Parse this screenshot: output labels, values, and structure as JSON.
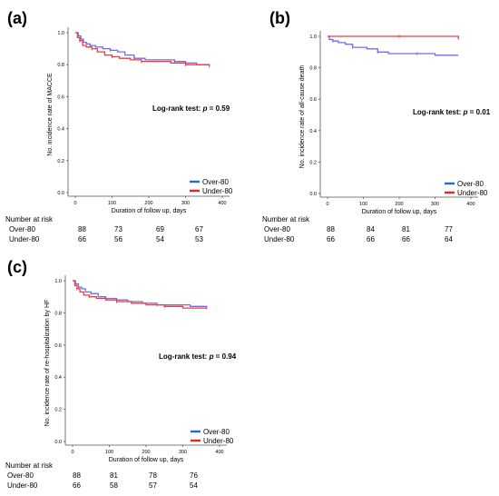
{
  "chart_data": [
    {
      "type": "line",
      "panel_label": "(a)",
      "ylabel": "No. incidence rate of MACCE",
      "xlabel": "Duration of follow up, days",
      "xlim": [
        0,
        400
      ],
      "ylim": [
        0,
        1.0
      ],
      "x_ticks": [
        "0",
        "100",
        "200",
        "300",
        "400"
      ],
      "y_ticks": [
        "0.0",
        "0.2",
        "0.4",
        "0.6",
        "0.8",
        "1.0"
      ],
      "annotation_prefix": "Log-rank test: ",
      "annotation_p": "p",
      "annotation_value": " = 0.59",
      "legend_position": "bottom-right",
      "series": [
        {
          "name": "Over-80",
          "color": "#6d6df0",
          "x": [
            0,
            8,
            15,
            22,
            30,
            40,
            55,
            75,
            95,
            115,
            135,
            160,
            190,
            230,
            270,
            300,
            330,
            365
          ],
          "y": [
            1.0,
            0.98,
            0.96,
            0.94,
            0.93,
            0.92,
            0.91,
            0.9,
            0.89,
            0.88,
            0.86,
            0.84,
            0.83,
            0.83,
            0.82,
            0.81,
            0.8,
            0.79
          ]
        },
        {
          "name": "Under-80",
          "color": "#f03c3c",
          "x": [
            0,
            6,
            12,
            20,
            30,
            45,
            60,
            80,
            100,
            120,
            150,
            180,
            220,
            260,
            300,
            340,
            365
          ],
          "y": [
            1.0,
            0.97,
            0.95,
            0.92,
            0.91,
            0.9,
            0.88,
            0.86,
            0.85,
            0.84,
            0.83,
            0.82,
            0.82,
            0.81,
            0.8,
            0.8,
            0.8
          ]
        }
      ],
      "risk_table": {
        "title": "Number at risk",
        "rows": [
          {
            "label": "Over-80",
            "values": [
              "88",
              "73",
              "69",
              "67"
            ]
          },
          {
            "label": "Under-80",
            "values": [
              "66",
              "56",
              "54",
              "53"
            ]
          }
        ]
      }
    },
    {
      "type": "line",
      "panel_label": "(b)",
      "ylabel": "No. incidence rate of all-cause death",
      "xlabel": "Duration of follow up, days",
      "xlim": [
        0,
        400
      ],
      "ylim": [
        0,
        1.0
      ],
      "x_ticks": [
        "0",
        "100",
        "200",
        "300",
        "400"
      ],
      "y_ticks": [
        "0.0",
        "0.2",
        "0.4",
        "0.6",
        "0.8",
        "1.0"
      ],
      "annotation_prefix": "Log-rank test: ",
      "annotation_p": "p",
      "annotation_value": " = 0.01",
      "legend_position": "bottom-right",
      "series": [
        {
          "name": "Over-80",
          "color": "#6d6df0",
          "x": [
            0,
            5,
            15,
            30,
            50,
            70,
            90,
            110,
            140,
            170,
            200,
            250,
            300,
            365
          ],
          "y": [
            1.0,
            0.98,
            0.97,
            0.96,
            0.95,
            0.93,
            0.93,
            0.92,
            0.9,
            0.89,
            0.89,
            0.89,
            0.88,
            0.88
          ]
        },
        {
          "name": "Under-80",
          "color": "#f03c3c",
          "x": [
            0,
            100,
            200,
            300,
            365
          ],
          "y": [
            1.0,
            1.0,
            1.0,
            1.0,
            0.98
          ]
        }
      ],
      "risk_table": {
        "title": "Number at risk",
        "rows": [
          {
            "label": "Over-80",
            "values": [
              "88",
              "84",
              "81",
              "77"
            ]
          },
          {
            "label": "Under-80",
            "values": [
              "66",
              "66",
              "66",
              "64"
            ]
          }
        ]
      }
    },
    {
      "type": "line",
      "panel_label": "(c)",
      "ylabel": "No. incidence rate of re-hospitalization by HF",
      "xlabel": "Duration of follow up, days",
      "xlim": [
        0,
        400
      ],
      "ylim": [
        0,
        1.0
      ],
      "x_ticks": [
        "0",
        "100",
        "200",
        "300",
        "400"
      ],
      "y_ticks": [
        "0.0",
        "0.2",
        "0.4",
        "0.6",
        "0.8",
        "1.0"
      ],
      "annotation_prefix": "Log-rank test: ",
      "annotation_p": "p",
      "annotation_value": " = 0.94",
      "legend_position": "bottom-right",
      "series": [
        {
          "name": "Over-80",
          "color": "#6d6df0",
          "x": [
            0,
            8,
            16,
            25,
            35,
            50,
            70,
            90,
            120,
            150,
            190,
            230,
            280,
            320,
            365
          ],
          "y": [
            1.0,
            0.98,
            0.96,
            0.95,
            0.93,
            0.92,
            0.9,
            0.89,
            0.88,
            0.87,
            0.86,
            0.85,
            0.85,
            0.84,
            0.83
          ]
        },
        {
          "name": "Under-80",
          "color": "#f03c3c",
          "x": [
            0,
            6,
            12,
            20,
            30,
            45,
            65,
            90,
            120,
            160,
            200,
            250,
            300,
            365
          ],
          "y": [
            1.0,
            0.97,
            0.95,
            0.93,
            0.91,
            0.9,
            0.89,
            0.88,
            0.87,
            0.86,
            0.85,
            0.84,
            0.83,
            0.83
          ]
        }
      ],
      "risk_table": {
        "title": "Number at risk",
        "rows": [
          {
            "label": "Over-80",
            "values": [
              "88",
              "81",
              "78",
              "76"
            ]
          },
          {
            "label": "Under-80",
            "values": [
              "66",
              "58",
              "57",
              "54"
            ]
          }
        ]
      }
    }
  ]
}
